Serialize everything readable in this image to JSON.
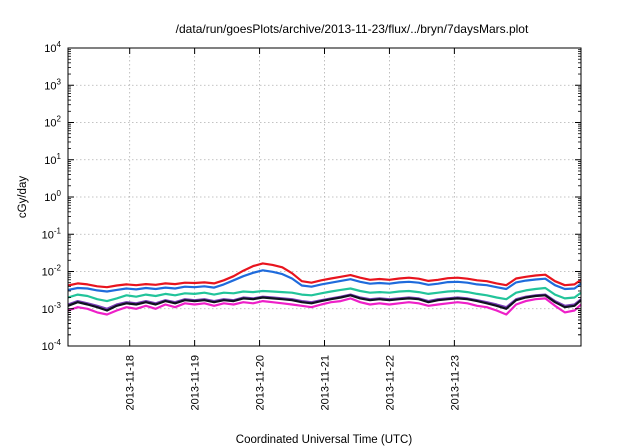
{
  "chart_data": {
    "type": "line",
    "title": "/data/run/goesPlots/archive/2013-11-23/flux/../bryn/7daysMars.plot",
    "xlabel": "Coordinated Universal Time (UTC)",
    "ylabel": "cGy/day",
    "yscale": "log",
    "ylim": [
      0.0001,
      10000
    ],
    "xlim": [
      -0.95,
      6.95
    ],
    "x_tick_labels": [
      "2013-11-18",
      "2013-11-19",
      "2013-11-20",
      "2013-11-21",
      "2013-11-22",
      "2013-11-23"
    ],
    "x_tick_positions_days": [
      0,
      1,
      2,
      3,
      4,
      5
    ],
    "y_ticks": [
      {
        "base": "10",
        "exp": "4"
      },
      {
        "base": "10",
        "exp": "3"
      },
      {
        "base": "10",
        "exp": "2"
      },
      {
        "base": "10",
        "exp": "1"
      },
      {
        "base": "10",
        "exp": "0"
      },
      {
        "base": "10",
        "exp": "-1"
      },
      {
        "base": "10",
        "exp": "-2"
      },
      {
        "base": "10",
        "exp": "-3"
      },
      {
        "base": "10",
        "exp": "-4"
      }
    ],
    "grid": true,
    "x": [
      -0.95,
      -0.8,
      -0.65,
      -0.5,
      -0.35,
      -0.2,
      -0.05,
      0.1,
      0.25,
      0.4,
      0.55,
      0.7,
      0.85,
      1.0,
      1.15,
      1.3,
      1.45,
      1.6,
      1.75,
      1.9,
      2.05,
      2.2,
      2.35,
      2.5,
      2.65,
      2.8,
      2.95,
      3.1,
      3.25,
      3.4,
      3.55,
      3.7,
      3.85,
      4.0,
      4.15,
      4.3,
      4.45,
      4.6,
      4.75,
      4.9,
      5.05,
      5.2,
      5.35,
      5.5,
      5.65,
      5.8,
      5.95,
      6.1,
      6.25,
      6.4,
      6.55,
      6.7,
      6.85,
      6.95
    ],
    "series": [
      {
        "color": "#e8141e",
        "values": [
          0.0042,
          0.0048,
          0.0045,
          0.004,
          0.0038,
          0.0042,
          0.0045,
          0.0043,
          0.0046,
          0.0044,
          0.0048,
          0.0046,
          0.005,
          0.0049,
          0.0051,
          0.0048,
          0.0058,
          0.0075,
          0.0105,
          0.014,
          0.0165,
          0.015,
          0.013,
          0.009,
          0.0055,
          0.005,
          0.0058,
          0.0065,
          0.0072,
          0.008,
          0.0068,
          0.006,
          0.0063,
          0.006,
          0.0065,
          0.0068,
          0.0064,
          0.0056,
          0.006,
          0.0066,
          0.0068,
          0.0064,
          0.0058,
          0.0055,
          0.0048,
          0.0043,
          0.0065,
          0.0072,
          0.0078,
          0.0082,
          0.0055,
          0.0043,
          0.0045,
          0.006
        ]
      },
      {
        "color": "#1f6bdc",
        "values": [
          0.0032,
          0.0036,
          0.0035,
          0.0031,
          0.0029,
          0.0032,
          0.0035,
          0.0033,
          0.0036,
          0.0034,
          0.0037,
          0.0035,
          0.0039,
          0.0038,
          0.004,
          0.0037,
          0.0045,
          0.0058,
          0.0075,
          0.0092,
          0.0108,
          0.0098,
          0.0085,
          0.0065,
          0.0042,
          0.0039,
          0.0045,
          0.005,
          0.0056,
          0.0062,
          0.0053,
          0.0047,
          0.0049,
          0.0047,
          0.0051,
          0.0053,
          0.005,
          0.0044,
          0.0047,
          0.0052,
          0.0053,
          0.005,
          0.0045,
          0.0043,
          0.0038,
          0.0034,
          0.0051,
          0.0057,
          0.0061,
          0.0064,
          0.0043,
          0.0034,
          0.0035,
          0.0047
        ]
      },
      {
        "color": "#22c49a",
        "values": [
          0.002,
          0.0024,
          0.0022,
          0.0018,
          0.0016,
          0.0019,
          0.0023,
          0.0021,
          0.0024,
          0.0022,
          0.0025,
          0.0023,
          0.0026,
          0.0025,
          0.0027,
          0.0024,
          0.0027,
          0.0026,
          0.0029,
          0.0028,
          0.003,
          0.0029,
          0.0028,
          0.0027,
          0.0024,
          0.0023,
          0.0026,
          0.0029,
          0.0032,
          0.0035,
          0.003,
          0.0027,
          0.0028,
          0.0027,
          0.0029,
          0.003,
          0.0028,
          0.0025,
          0.0027,
          0.0029,
          0.003,
          0.0028,
          0.0025,
          0.0023,
          0.002,
          0.0018,
          0.0027,
          0.0031,
          0.0034,
          0.0036,
          0.0024,
          0.0019,
          0.002,
          0.0027
        ]
      },
      {
        "color": "#7a3fb8",
        "values": [
          0.0013,
          0.0016,
          0.0014,
          0.0012,
          0.001,
          0.0013,
          0.0015,
          0.0014,
          0.0016,
          0.0014,
          0.0017,
          0.0015,
          0.0018,
          0.0017,
          0.0018,
          0.0016,
          0.0018,
          0.0017,
          0.002,
          0.0019,
          0.0021,
          0.002,
          0.0019,
          0.0018,
          0.0016,
          0.0015,
          0.0017,
          0.0019,
          0.0021,
          0.0024,
          0.002,
          0.0018,
          0.0019,
          0.0018,
          0.0019,
          0.002,
          0.0019,
          0.0016,
          0.0018,
          0.0019,
          0.002,
          0.0019,
          0.0017,
          0.0015,
          0.0013,
          0.0011,
          0.0018,
          0.0021,
          0.0023,
          0.0024,
          0.0016,
          0.0012,
          0.0013,
          0.0018
        ]
      },
      {
        "color": "#101020",
        "values": [
          0.0012,
          0.0015,
          0.0013,
          0.0011,
          0.0009,
          0.0012,
          0.0014,
          0.0013,
          0.0015,
          0.0013,
          0.0016,
          0.0014,
          0.0017,
          0.0016,
          0.0017,
          0.0015,
          0.0017,
          0.0016,
          0.0019,
          0.0018,
          0.002,
          0.0019,
          0.0018,
          0.0017,
          0.0015,
          0.0014,
          0.0016,
          0.0018,
          0.002,
          0.0023,
          0.0019,
          0.0017,
          0.0018,
          0.0017,
          0.0018,
          0.0019,
          0.0018,
          0.0015,
          0.0017,
          0.0018,
          0.0019,
          0.0018,
          0.0016,
          0.0014,
          0.0012,
          0.001,
          0.0017,
          0.002,
          0.0022,
          0.0023,
          0.0015,
          0.0011,
          0.0012,
          0.0017
        ]
      },
      {
        "color": "#ee20c8",
        "values": [
          0.0009,
          0.0011,
          0.001,
          0.0008,
          0.0007,
          0.0009,
          0.0011,
          0.001,
          0.0012,
          0.001,
          0.0013,
          0.0011,
          0.0014,
          0.0013,
          0.0014,
          0.0012,
          0.0014,
          0.0013,
          0.0015,
          0.0014,
          0.0016,
          0.0015,
          0.0014,
          0.0013,
          0.0012,
          0.0011,
          0.0013,
          0.0015,
          0.0016,
          0.0019,
          0.0015,
          0.0013,
          0.0014,
          0.0013,
          0.0014,
          0.0015,
          0.0014,
          0.0012,
          0.0013,
          0.0014,
          0.0015,
          0.0014,
          0.0012,
          0.0011,
          0.0009,
          0.0007,
          0.0013,
          0.0016,
          0.0018,
          0.0019,
          0.0012,
          0.0008,
          0.0009,
          0.0013
        ]
      }
    ]
  }
}
